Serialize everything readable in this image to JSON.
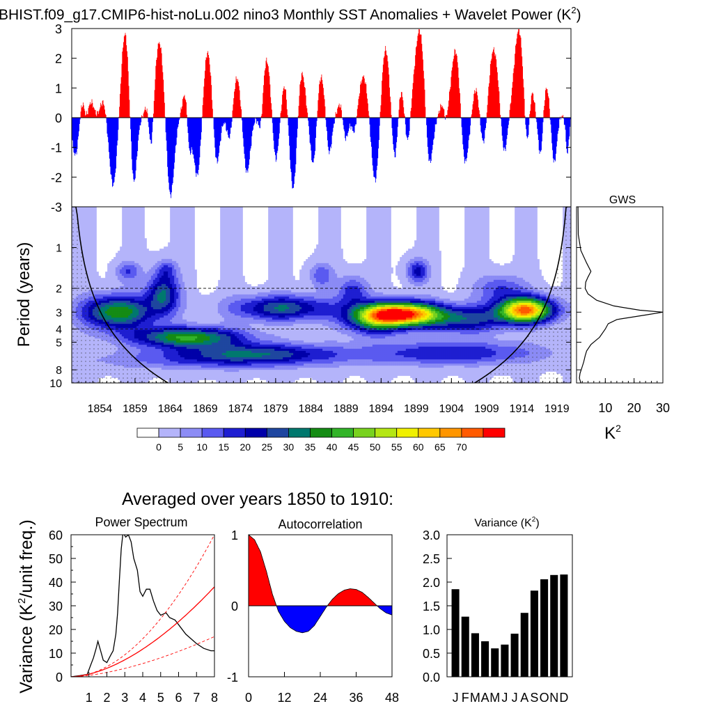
{
  "chart_data": [
    {
      "type": "bar",
      "name": "sst-anomalies",
      "title": "BHIST.f09_g17.CMIP6-hist-noLu.002 nino3 Monthly SST Anomalies + Wavelet Power (K",
      "title_sup": "2",
      "title_end": ")",
      "ylim": [
        -3,
        3
      ],
      "yticks": [
        "3",
        "2",
        "1",
        "0",
        "-1",
        "-2",
        "-3"
      ],
      "ytick_values": [
        3,
        2,
        1,
        0,
        -1,
        -2,
        -3
      ],
      "xlim": [
        1850,
        1921
      ],
      "colors": {
        "positive": "#ff0000",
        "negative": "#0000ff"
      },
      "events": [
        {
          "t": 1851.5,
          "h": 0.8,
          "w": 0.9
        },
        {
          "t": 1852.8,
          "h": 0.5,
          "w": 0.7
        },
        {
          "t": 1854.5,
          "h": 0.6,
          "w": 0.8
        },
        {
          "t": 1857.6,
          "h": 2.9,
          "w": 1.0
        },
        {
          "t": 1860.8,
          "h": 0.5,
          "w": 0.7
        },
        {
          "t": 1862.5,
          "h": 2.6,
          "w": 1.2
        },
        {
          "t": 1866.2,
          "h": 0.9,
          "w": 0.8
        },
        {
          "t": 1869.3,
          "h": 2.3,
          "w": 1.1
        },
        {
          "t": 1873.5,
          "h": 1.4,
          "w": 1.0
        },
        {
          "t": 1877.7,
          "h": 2.0,
          "w": 1.1
        },
        {
          "t": 1880.3,
          "h": 1.2,
          "w": 0.8
        },
        {
          "t": 1882.7,
          "h": 1.6,
          "w": 0.9
        },
        {
          "t": 1885.4,
          "h": 1.5,
          "w": 1.0
        },
        {
          "t": 1888.3,
          "h": 0.6,
          "w": 0.8
        },
        {
          "t": 1891.5,
          "h": 1.4,
          "w": 1.1
        },
        {
          "t": 1894.6,
          "h": 2.4,
          "w": 1.1
        },
        {
          "t": 1896.7,
          "h": 1.2,
          "w": 0.8
        },
        {
          "t": 1899.5,
          "h": 3.0,
          "w": 1.3
        },
        {
          "t": 1902.8,
          "h": 0.5,
          "w": 0.8
        },
        {
          "t": 1904.6,
          "h": 2.3,
          "w": 1.1
        },
        {
          "t": 1907.5,
          "h": 1.0,
          "w": 0.8
        },
        {
          "t": 1910.0,
          "h": 2.3,
          "w": 1.2
        },
        {
          "t": 1913.6,
          "h": 3.0,
          "w": 1.2
        },
        {
          "t": 1915.3,
          "h": 1.9,
          "w": 0.7
        },
        {
          "t": 1917.5,
          "h": 1.1,
          "w": 0.9
        },
        {
          "t": 1919.5,
          "h": 0.1,
          "w": 0.6
        },
        {
          "t": 1850.6,
          "h": -1.4,
          "w": 0.9
        },
        {
          "t": 1852.0,
          "h": -0.4,
          "w": 0.5
        },
        {
          "t": 1855.9,
          "h": -2.3,
          "w": 1.0
        },
        {
          "t": 1858.8,
          "h": -2.4,
          "w": 0.8
        },
        {
          "t": 1861.3,
          "h": -1.6,
          "w": 0.6
        },
        {
          "t": 1864.0,
          "h": -2.8,
          "w": 1.0
        },
        {
          "t": 1866.7,
          "h": -1.3,
          "w": 0.5
        },
        {
          "t": 1867.9,
          "h": -2.1,
          "w": 1.0
        },
        {
          "t": 1870.6,
          "h": -1.7,
          "w": 0.8
        },
        {
          "t": 1872.5,
          "h": -0.9,
          "w": 0.7
        },
        {
          "t": 1874.9,
          "h": -1.9,
          "w": 0.9
        },
        {
          "t": 1876.9,
          "h": -1.0,
          "w": 0.6
        },
        {
          "t": 1879.0,
          "h": -1.6,
          "w": 0.8
        },
        {
          "t": 1881.5,
          "h": -2.5,
          "w": 0.9
        },
        {
          "t": 1884.4,
          "h": -1.8,
          "w": 0.8
        },
        {
          "t": 1886.6,
          "h": -1.3,
          "w": 0.7
        },
        {
          "t": 1888.9,
          "h": -0.9,
          "w": 0.7
        },
        {
          "t": 1890.2,
          "h": -0.6,
          "w": 0.6
        },
        {
          "t": 1893.2,
          "h": -2.3,
          "w": 1.0
        },
        {
          "t": 1896.0,
          "h": -1.8,
          "w": 0.8
        },
        {
          "t": 1897.8,
          "h": -1.0,
          "w": 0.6
        },
        {
          "t": 1900.8,
          "h": -2.0,
          "w": 0.9
        },
        {
          "t": 1903.2,
          "h": -0.5,
          "w": 0.5
        },
        {
          "t": 1905.9,
          "h": -1.7,
          "w": 0.9
        },
        {
          "t": 1908.6,
          "h": -1.1,
          "w": 0.8
        },
        {
          "t": 1911.5,
          "h": -1.3,
          "w": 0.8
        },
        {
          "t": 1914.9,
          "h": -2.2,
          "w": 0.8
        },
        {
          "t": 1916.7,
          "h": -1.5,
          "w": 0.6
        },
        {
          "t": 1918.6,
          "h": -1.6,
          "w": 0.7
        },
        {
          "t": 1920.5,
          "h": -1.2,
          "w": 0.4
        }
      ]
    },
    {
      "type": "heatmap",
      "name": "wavelet-power",
      "ylabel": "Period (years)",
      "yticks": [
        "1",
        "2",
        "3",
        "4",
        "5",
        "8",
        "10"
      ],
      "ytick_values": [
        1,
        2,
        3,
        4,
        5,
        8,
        10
      ],
      "ylim": [
        0.5,
        10
      ],
      "xticks": [
        "1854",
        "1859",
        "1864",
        "1869",
        "1874",
        "1879",
        "1884",
        "1889",
        "1894",
        "1899",
        "1904",
        "1909",
        "1914",
        "1919"
      ],
      "xtick_values": [
        1854,
        1859,
        1864,
        1869,
        1874,
        1879,
        1884,
        1889,
        1894,
        1899,
        1904,
        1909,
        1914,
        1919
      ],
      "xlim": [
        1850,
        1921
      ],
      "dashed_periods": [
        2,
        4
      ],
      "levels": [
        0,
        5,
        10,
        15,
        20,
        25,
        30,
        35,
        40,
        45,
        50,
        55,
        60,
        65,
        70
      ],
      "blobs": [
        {
          "t": 1856.5,
          "p": 3.0,
          "a": 40,
          "st": 3.5,
          "sp": 0.2
        },
        {
          "t": 1863.0,
          "p": 2.2,
          "a": 30,
          "st": 1.6,
          "sp": 0.25
        },
        {
          "t": 1866.5,
          "p": 4.6,
          "a": 40,
          "st": 5.5,
          "sp": 0.12
        },
        {
          "t": 1858.0,
          "p": 1.5,
          "a": 15,
          "st": 1.2,
          "sp": 0.12
        },
        {
          "t": 1863.5,
          "p": 1.45,
          "a": 12,
          "st": 1.0,
          "sp": 0.12
        },
        {
          "t": 1880.0,
          "p": 2.8,
          "a": 30,
          "st": 5.0,
          "sp": 0.15
        },
        {
          "t": 1876.0,
          "p": 6.0,
          "a": 24,
          "st": 8.0,
          "sp": 0.12
        },
        {
          "t": 1897.0,
          "p": 3.1,
          "a": 74,
          "st": 3.8,
          "sp": 0.14
        },
        {
          "t": 1893.0,
          "p": 3.4,
          "a": 30,
          "st": 3.0,
          "sp": 0.18
        },
        {
          "t": 1899.2,
          "p": 1.5,
          "a": 22,
          "st": 1.1,
          "sp": 0.14
        },
        {
          "t": 1906.0,
          "p": 3.4,
          "a": 26,
          "st": 4.0,
          "sp": 0.16
        },
        {
          "t": 1914.5,
          "p": 2.9,
          "a": 70,
          "st": 2.8,
          "sp": 0.15
        },
        {
          "t": 1911.0,
          "p": 2.0,
          "a": 15,
          "st": 2.5,
          "sp": 0.16
        },
        {
          "t": 1904.0,
          "p": 6.0,
          "a": 20,
          "st": 9.0,
          "sp": 0.14
        },
        {
          "t": 1870.0,
          "p": 6.8,
          "a": 12,
          "st": 12.0,
          "sp": 0.12
        },
        {
          "t": 1885.5,
          "p": 1.6,
          "a": 14,
          "st": 1.2,
          "sp": 0.15
        },
        {
          "t": 1890.0,
          "p": 2.1,
          "a": 18,
          "st": 1.5,
          "sp": 0.18
        }
      ],
      "cone_edge_period": 0.73,
      "colorbar": {
        "labels": [
          "0",
          "5",
          "10",
          "15",
          "20",
          "25",
          "30",
          "35",
          "40",
          "45",
          "50",
          "55",
          "60",
          "65",
          "70"
        ],
        "colors": [
          "#ffffff",
          "#b4b4fa",
          "#8c8cf5",
          "#5a5af0",
          "#1e1ed2",
          "#0000aa",
          "#1e46a0",
          "#00786e",
          "#148c14",
          "#32b428",
          "#78d21e",
          "#b4e614",
          "#f0f000",
          "#ffc800",
          "#ff9600",
          "#ff5a00",
          "#ff0000"
        ]
      }
    },
    {
      "type": "line",
      "name": "global-wavelet-spectrum",
      "title": "GWS",
      "xlabel": "K",
      "xlabel_sup": "2",
      "xticks": [
        "10",
        "20",
        "30"
      ],
      "xtick_values": [
        10,
        20,
        30
      ],
      "xlim": [
        0,
        30
      ],
      "points": [
        [
          0.5,
          0.5
        ],
        [
          0.6,
          0.8
        ],
        [
          1.5,
          1.05
        ],
        [
          3.5,
          1.3
        ],
        [
          5.0,
          1.5
        ],
        [
          4.0,
          1.65
        ],
        [
          3.2,
          1.8
        ],
        [
          3.0,
          2.0
        ],
        [
          4.0,
          2.2
        ],
        [
          7.0,
          2.45
        ],
        [
          13.0,
          2.7
        ],
        [
          22.0,
          2.9
        ],
        [
          30.0,
          3.0
        ],
        [
          24.0,
          3.15
        ],
        [
          14.0,
          3.4
        ],
        [
          11.0,
          3.65
        ],
        [
          10.0,
          4.0
        ],
        [
          8.0,
          4.6
        ],
        [
          5.0,
          5.2
        ],
        [
          3.5,
          5.8
        ],
        [
          3.0,
          6.3
        ],
        [
          2.5,
          7.0
        ],
        [
          1.8,
          7.8
        ],
        [
          1.2,
          8.5
        ],
        [
          1.0,
          9.2
        ],
        [
          1.5,
          10.0
        ]
      ]
    },
    {
      "type": "line",
      "name": "power-spectrum",
      "suptitle": "Averaged over years 1850 to 1910:",
      "title": "Power Spectrum",
      "ylabel": "Variance (K",
      "ylabel_sup": "2",
      "ylabel_end": "/unit freq.)",
      "xticks": [
        "1",
        "2",
        "3",
        "4",
        "5",
        "6",
        "7",
        "8"
      ],
      "xtick_values": [
        1,
        2,
        3,
        4,
        5,
        6,
        7,
        8
      ],
      "xlim": [
        0,
        8
      ],
      "yticks": [
        "0",
        "10",
        "20",
        "30",
        "40",
        "50",
        "60"
      ],
      "ytick_values": [
        0,
        10,
        20,
        30,
        40,
        50,
        60
      ],
      "ylim": [
        0,
        60
      ],
      "series": [
        {
          "name": "spectrum",
          "color": "#000000",
          "dash": false,
          "points": [
            [
              0,
              0
            ],
            [
              0.5,
              0.5
            ],
            [
              0.9,
              1.0
            ],
            [
              1.1,
              5.0
            ],
            [
              1.25,
              8.0
            ],
            [
              1.4,
              12.0
            ],
            [
              1.5,
              15.0
            ],
            [
              1.65,
              11.0
            ],
            [
              1.8,
              7.0
            ],
            [
              2.0,
              6.0
            ],
            [
              2.2,
              9.0
            ],
            [
              2.35,
              11.0
            ],
            [
              2.5,
              18.0
            ],
            [
              2.6,
              27.0
            ],
            [
              2.7,
              41.0
            ],
            [
              2.8,
              54.0
            ],
            [
              2.9,
              61.0
            ],
            [
              3.05,
              59.0
            ],
            [
              3.2,
              60.0
            ],
            [
              3.35,
              57.0
            ],
            [
              3.5,
              50.0
            ],
            [
              3.7,
              45.0
            ],
            [
              3.85,
              36.0
            ],
            [
              4.0,
              34.0
            ],
            [
              4.2,
              37.0
            ],
            [
              4.4,
              37.0
            ],
            [
              4.6,
              32.0
            ],
            [
              4.8,
              28.0
            ],
            [
              5.0,
              26.0
            ],
            [
              5.3,
              27.0
            ],
            [
              5.5,
              25.0
            ],
            [
              5.8,
              24.0
            ],
            [
              6.0,
              22.0
            ],
            [
              6.4,
              18.0
            ],
            [
              7.0,
              14.0
            ],
            [
              7.4,
              12.0
            ],
            [
              7.8,
              11.0
            ],
            [
              8.0,
              11.0
            ]
          ]
        },
        {
          "name": "red-noise",
          "color": "#ff0000",
          "dash": false,
          "curve": {
            "a": 38,
            "p": 1.7
          }
        },
        {
          "name": "upper-95",
          "color": "#ff0000",
          "dash": true,
          "curve": {
            "a": 60,
            "p": 1.9
          }
        },
        {
          "name": "lower-5",
          "color": "#ff0000",
          "dash": true,
          "curve": {
            "a": 17,
            "p": 1.6
          }
        }
      ]
    },
    {
      "type": "area",
      "name": "autocorrelation",
      "title": "Autocorrelation",
      "xticks": [
        "0",
        "12",
        "24",
        "36",
        "48"
      ],
      "xtick_values": [
        0,
        12,
        24,
        36,
        48
      ],
      "xlim": [
        0,
        48
      ],
      "yticks": [
        "1",
        "0",
        "-1"
      ],
      "ytick_values": [
        1,
        0,
        -1
      ],
      "ylim": [
        -1,
        1
      ],
      "colors": {
        "positive": "#ff0000",
        "negative": "#0000ff"
      },
      "points": [
        [
          0,
          1.0
        ],
        [
          2,
          0.93
        ],
        [
          4,
          0.76
        ],
        [
          6,
          0.48
        ],
        [
          8,
          0.16
        ],
        [
          10,
          -0.08
        ],
        [
          12,
          -0.22
        ],
        [
          14,
          -0.31
        ],
        [
          16,
          -0.36
        ],
        [
          18,
          -0.38
        ],
        [
          20,
          -0.36
        ],
        [
          22,
          -0.28
        ],
        [
          24,
          -0.15
        ],
        [
          26,
          -0.02
        ],
        [
          28,
          0.09
        ],
        [
          30,
          0.17
        ],
        [
          32,
          0.22
        ],
        [
          34,
          0.24
        ],
        [
          36,
          0.23
        ],
        [
          38,
          0.19
        ],
        [
          40,
          0.12
        ],
        [
          42,
          0.04
        ],
        [
          44,
          -0.04
        ],
        [
          46,
          -0.1
        ],
        [
          48,
          -0.13
        ]
      ]
    },
    {
      "type": "bar",
      "name": "variance",
      "title": "Variance (K",
      "title_sup": "2",
      "title_end": ")",
      "categories": [
        "J",
        "F",
        "M",
        "A",
        "M",
        "J",
        "J",
        "A",
        "S",
        "O",
        "N",
        "D"
      ],
      "values": [
        1.85,
        1.27,
        0.92,
        0.75,
        0.6,
        0.68,
        0.91,
        1.35,
        1.82,
        2.06,
        2.15,
        2.16
      ],
      "yticks": [
        "3.0",
        "2.5",
        "2.0",
        "1.5",
        "1.0",
        "0.5",
        "0.0"
      ],
      "ytick_values": [
        3.0,
        2.5,
        2.0,
        1.5,
        1.0,
        0.5,
        0.0
      ],
      "ylim": [
        0,
        3.0
      ],
      "color": "#000000"
    }
  ]
}
